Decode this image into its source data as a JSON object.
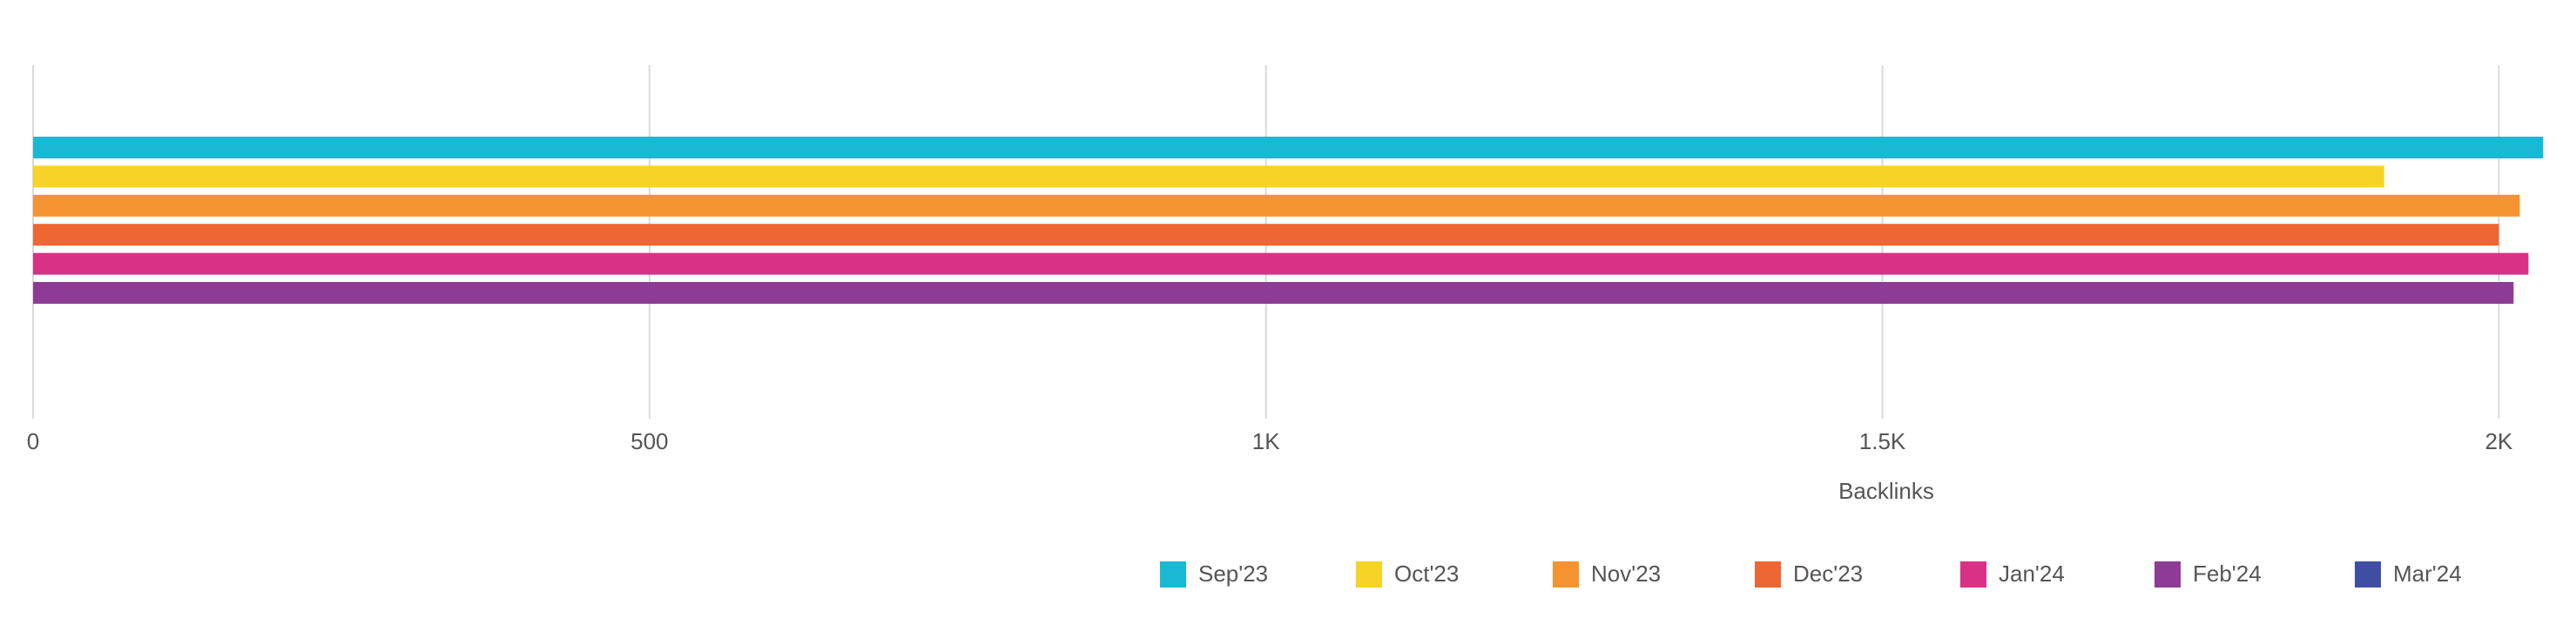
{
  "chart_data": {
    "type": "hbar",
    "x_label": "Backlinks",
    "xlim": [
      0,
      2040
    ],
    "xticks": [
      0,
      500,
      {
        "value": 1000,
        "label": "1K"
      },
      {
        "value": 1500,
        "label": "1.5K"
      },
      {
        "value": 2000,
        "label": "2K"
      }
    ],
    "grid": true,
    "legend": "bottom-right",
    "series": [
      {
        "name": "Sep'23",
        "color": "#1ab9d3",
        "values": [
          2036
        ]
      },
      {
        "name": "Oct'23",
        "color": "#f5d327",
        "values": [
          1907
        ]
      },
      {
        "name": "Nov'23",
        "color": "#f59331",
        "values": [
          2017
        ]
      },
      {
        "name": "Dec'23",
        "color": "#ee6633",
        "values": [
          2000
        ]
      },
      {
        "name": "Jan'24",
        "color": "#d93185",
        "values": [
          2024
        ]
      },
      {
        "name": "Feb'24",
        "color": "#8e3b96",
        "values": [
          2012
        ]
      },
      {
        "name": "Mar'24",
        "color": "#3f4ea3",
        "values": [
          null
        ]
      }
    ]
  }
}
